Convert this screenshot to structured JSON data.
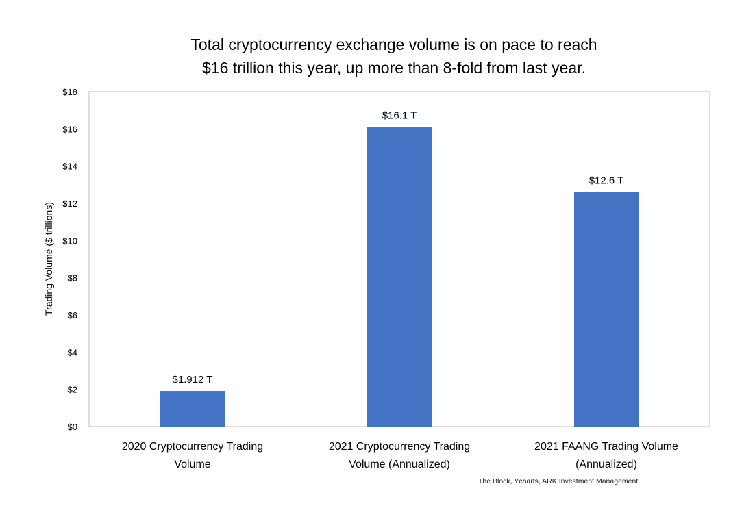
{
  "chart_data": {
    "type": "bar",
    "title_lines": [
      "Total cryptocurrency exchange volume is on pace to reach",
      "$16 trillion this year, up more than 8-fold from last year."
    ],
    "xlabel": "",
    "ylabel": "Trading Volume ($ trillions)",
    "categories": [
      [
        "2020 Cryptocurrency Trading",
        "Volume"
      ],
      [
        "2021 Cryptocurrency Trading",
        "Volume (Annualized)"
      ],
      [
        "2021 FAANG Trading Volume",
        "(Annualized)"
      ]
    ],
    "values": [
      1.912,
      16.1,
      12.6
    ],
    "data_labels": [
      "$1.912 T",
      "$16.1 T",
      "$12.6 T"
    ],
    "ylim": [
      0,
      18
    ],
    "yticks": [
      0,
      2,
      4,
      6,
      8,
      10,
      12,
      14,
      16,
      18
    ],
    "ytick_labels": [
      "$0",
      "$2",
      "$4",
      "$6",
      "$8",
      "$10",
      "$12",
      "$14",
      "$16",
      "$18"
    ],
    "bar_color": "#4472c4",
    "grid": false,
    "legend": "none",
    "source": "The Block, Ycharts, ARK Investment Management"
  }
}
